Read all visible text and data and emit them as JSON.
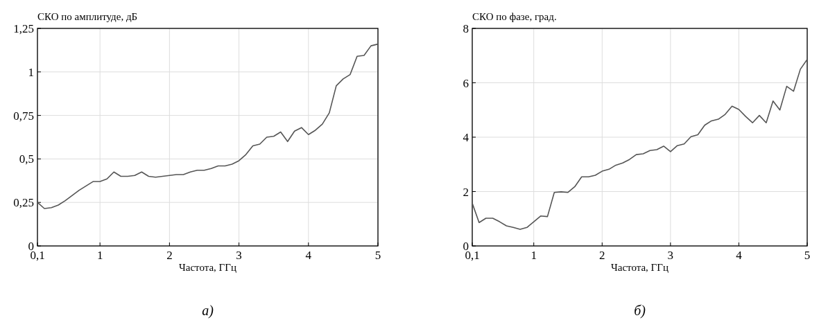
{
  "chart_data": [
    {
      "type": "line",
      "ylabel": "СКО по амплитуде, дБ",
      "xlabel": "Частота, ГГц",
      "annotations": [
        "а)"
      ],
      "x": [
        0.1,
        0.2,
        0.3,
        0.4,
        0.5,
        0.6,
        0.7,
        0.8,
        0.9,
        1.0,
        1.1,
        1.2,
        1.3,
        1.4,
        1.5,
        1.6,
        1.7,
        1.8,
        1.9,
        2.0,
        2.1,
        2.2,
        2.3,
        2.4,
        2.5,
        2.6,
        2.7,
        2.8,
        2.9,
        3.0,
        3.1,
        3.2,
        3.3,
        3.4,
        3.5,
        3.6,
        3.7,
        3.8,
        3.9,
        4.0,
        4.1,
        4.2,
        4.3,
        4.4,
        4.5,
        4.6,
        4.7,
        4.8,
        4.9,
        5.0
      ],
      "series": [
        {
          "color": "#555555",
          "values": [
            0.25,
            0.215,
            0.22,
            0.235,
            0.26,
            0.29,
            0.32,
            0.345,
            0.37,
            0.37,
            0.385,
            0.425,
            0.4,
            0.4,
            0.405,
            0.425,
            0.4,
            0.395,
            0.4,
            0.405,
            0.41,
            0.41,
            0.425,
            0.435,
            0.435,
            0.445,
            0.46,
            0.46,
            0.47,
            0.49,
            0.525,
            0.575,
            0.585,
            0.625,
            0.63,
            0.655,
            0.6,
            0.66,
            0.68,
            0.64,
            0.665,
            0.7,
            0.765,
            0.92,
            0.96,
            0.985,
            1.09,
            1.095,
            1.15,
            1.16
          ]
        }
      ],
      "xlim": [
        0.1,
        5.0
      ],
      "xticks": [
        {
          "value": 0.1,
          "label": "0,1"
        },
        1,
        2,
        3,
        4,
        5
      ],
      "ylim": [
        0,
        1.25
      ],
      "yticks": [
        0,
        {
          "value": 0.25,
          "label": "0,25"
        },
        {
          "value": 0.5,
          "label": "0,5"
        },
        {
          "value": 0.75,
          "label": "0,75"
        },
        1,
        {
          "value": 1.25,
          "label": "1,25"
        }
      ],
      "grid": true
    },
    {
      "type": "line",
      "ylabel": "СКО по фазе, град.",
      "xlabel": "Частота, ГГц",
      "annotations": [
        "б)"
      ],
      "x": [
        0.1,
        0.2,
        0.3,
        0.4,
        0.5,
        0.6,
        0.7,
        0.8,
        0.9,
        1.0,
        1.1,
        1.2,
        1.3,
        1.4,
        1.5,
        1.6,
        1.7,
        1.8,
        1.9,
        2.0,
        2.1,
        2.2,
        2.3,
        2.4,
        2.5,
        2.6,
        2.7,
        2.8,
        2.9,
        3.0,
        3.1,
        3.2,
        3.3,
        3.4,
        3.5,
        3.6,
        3.7,
        3.8,
        3.9,
        4.0,
        4.1,
        4.2,
        4.3,
        4.4,
        4.5,
        4.6,
        4.7,
        4.8,
        4.9,
        5.0
      ],
      "series": [
        {
          "color": "#555555",
          "values": [
            1.57,
            0.86,
            1.02,
            1.02,
            0.89,
            0.74,
            0.68,
            0.61,
            0.68,
            0.89,
            1.1,
            1.08,
            1.97,
            1.99,
            1.97,
            2.18,
            2.54,
            2.54,
            2.6,
            2.75,
            2.82,
            2.97,
            3.05,
            3.18,
            3.36,
            3.39,
            3.51,
            3.54,
            3.67,
            3.47,
            3.69,
            3.75,
            4.02,
            4.09,
            4.44,
            4.6,
            4.66,
            4.84,
            5.14,
            5.02,
            4.76,
            4.53,
            4.8,
            4.53,
            5.33,
            5.0,
            5.87,
            5.69,
            6.5,
            6.86
          ]
        }
      ],
      "xlim": [
        0.1,
        5.0
      ],
      "xticks": [
        {
          "value": 0.1,
          "label": "0,1"
        },
        1,
        2,
        3,
        4,
        5
      ],
      "ylim": [
        0,
        8
      ],
      "yticks": [
        0,
        2,
        4,
        6,
        8
      ],
      "grid": true
    }
  ]
}
